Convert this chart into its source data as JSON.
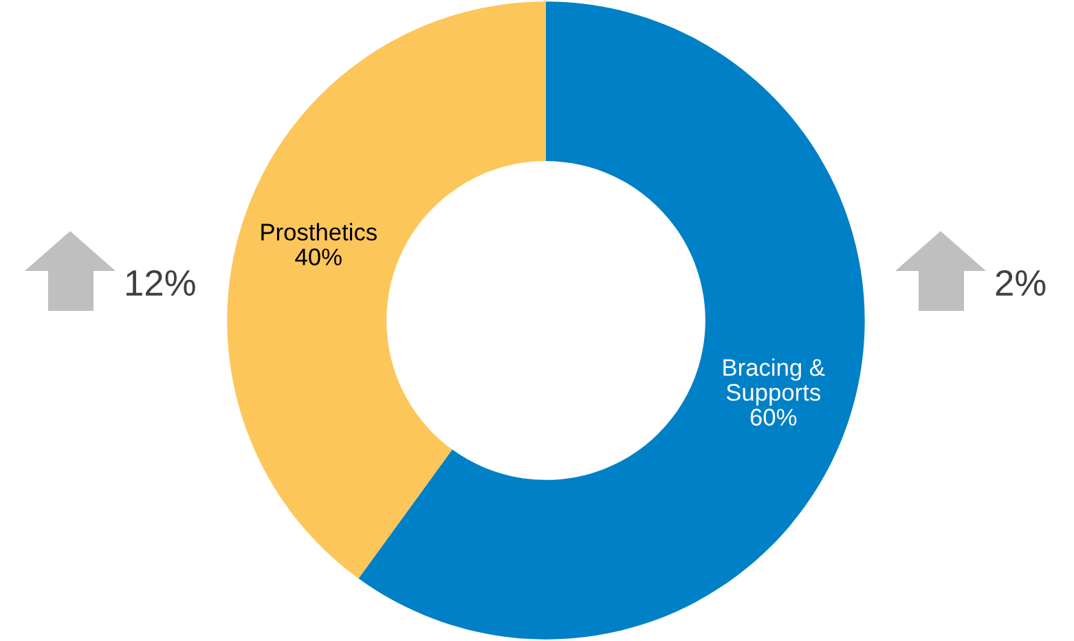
{
  "chart_data": {
    "type": "donut",
    "categories": [
      "Bracing & Supports",
      "Prosthetics"
    ],
    "values": [
      60,
      40
    ],
    "value_labels": [
      "60%",
      "40%"
    ],
    "colors": [
      "#0080c6",
      "#fdc65a"
    ],
    "annotations": [
      "12%",
      "2%"
    ]
  }
}
